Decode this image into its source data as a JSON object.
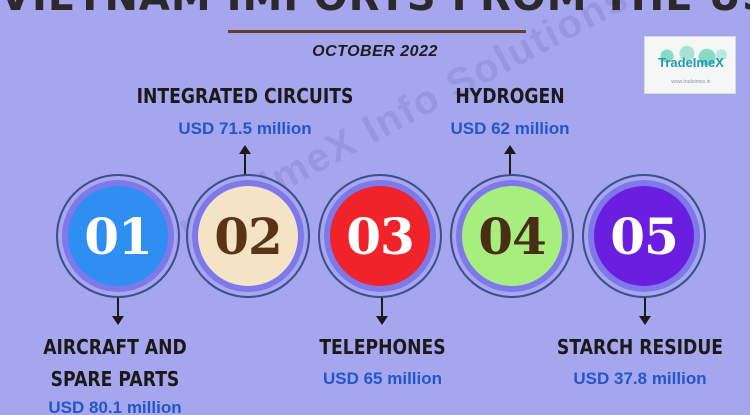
{
  "header": {
    "title": "VIETNAM IMPORTS FROM THE USA",
    "subtitle": "OCTOBER 2022"
  },
  "logo": {
    "brand": "TradeImeX",
    "tagline": "www.tradeimex.in"
  },
  "watermark": "TradeImeX Info Solutions Pvt Ltd",
  "items": [
    {
      "number": "01",
      "label_line1": "AIRCRAFT AND",
      "label_line2": "SPARE PARTS",
      "value": "USD 80.1 million",
      "circle_color": "#2f8ef2",
      "text_color": "#ffffff"
    },
    {
      "number": "02",
      "label_line1": "INTEGRATED CIRCUITS",
      "label_line2": "",
      "value": "USD 71.5 million",
      "circle_color": "#f5e3c6",
      "text_color": "#5a3416"
    },
    {
      "number": "03",
      "label_line1": "TELEPHONES",
      "label_line2": "",
      "value": "USD 65 million",
      "circle_color": "#f0232b",
      "text_color": "#ffffff"
    },
    {
      "number": "04",
      "label_line1": "HYDROGEN",
      "label_line2": "",
      "value": "USD 62 million",
      "circle_color": "#a6ef7e",
      "text_color": "#4a2d17"
    },
    {
      "number": "05",
      "label_line1": "STARCH RESIDUE",
      "label_line2": "",
      "value": "USD 37.8 million",
      "circle_color": "#6a1fe0",
      "text_color": "#ffffff"
    }
  ]
}
